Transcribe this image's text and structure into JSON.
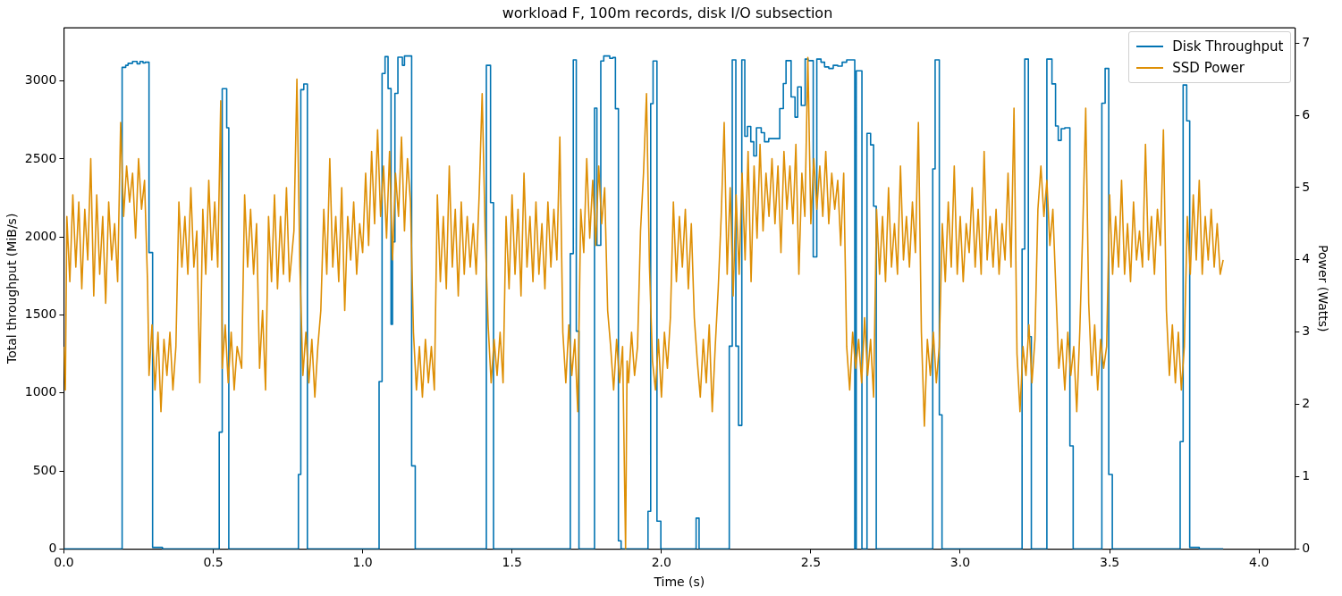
{
  "chart_data": {
    "type": "line",
    "title": "workload F, 100m records, disk I/O subsection",
    "xlabel": "Time (s)",
    "ylabel": "Total throughput (MiB/s)",
    "y2label": "Power (Watts)",
    "xlim": [
      0,
      4.12
    ],
    "xticks": [
      {
        "value": 0,
        "label": "0.0"
      },
      {
        "value": 0.5,
        "label": "0.5"
      },
      {
        "value": 1,
        "label": "1.0"
      },
      {
        "value": 1.5,
        "label": "1.5"
      },
      {
        "value": 2,
        "label": "2.0"
      },
      {
        "value": 2.5,
        "label": "2.5"
      },
      {
        "value": 3,
        "label": "3.0"
      },
      {
        "value": 3.5,
        "label": "3.5"
      },
      {
        "value": 4,
        "label": "4.0"
      }
    ],
    "ylim": [
      0,
      3340
    ],
    "yticks": [
      0,
      500,
      1000,
      1500,
      2000,
      2500,
      3000
    ],
    "y2lim": [
      0,
      7.21
    ],
    "y2ticks": [
      0,
      1,
      2,
      3,
      4,
      5,
      6,
      7
    ],
    "legend": "top right",
    "grid": false,
    "marker": "none",
    "series": [
      {
        "name": "Disk Throughput",
        "type": "step",
        "color": "#0173b2",
        "x": [
          0,
          0.195,
          0.207,
          0.215,
          0.23,
          0.245,
          0.255,
          0.265,
          0.272,
          0.285,
          0.297,
          0.33,
          0.52,
          0.53,
          0.545,
          0.552,
          0.785,
          0.793,
          0.803,
          0.815,
          1.055,
          1.065,
          1.075,
          1.085,
          1.095,
          1.1,
          1.108,
          1.118,
          1.133,
          1.14,
          1.164,
          1.176,
          1.414,
          1.428,
          1.438,
          1.695,
          1.705,
          1.715,
          1.724,
          1.776,
          1.784,
          1.797,
          1.807,
          1.827,
          1.837,
          1.846,
          1.856,
          1.865,
          1.955,
          1.964,
          1.972,
          1.985,
          1.998,
          2.116,
          2.126,
          2.227,
          2.237,
          2.249,
          2.258,
          2.269,
          2.279,
          2.288,
          2.299,
          2.309,
          2.318,
          2.334,
          2.345,
          2.359,
          2.396,
          2.408,
          2.417,
          2.434,
          2.447,
          2.456,
          2.468,
          2.481,
          2.491,
          2.508,
          2.52,
          2.534,
          2.546,
          2.56,
          2.575,
          2.59,
          2.605,
          2.62,
          2.647,
          2.652,
          2.671,
          2.688,
          2.7,
          2.71,
          2.719,
          2.908,
          2.916,
          2.93,
          2.939,
          3.207,
          3.216,
          3.228,
          3.238,
          3.29,
          3.307,
          3.319,
          3.328,
          3.338,
          3.35,
          3.367,
          3.378,
          3.474,
          3.485,
          3.497,
          3.509,
          3.736,
          3.746,
          3.758,
          3.768,
          3.8,
          3.88
        ],
        "values": [
          0,
          3087,
          3100,
          3113,
          3125,
          3110,
          3125,
          3115,
          3120,
          1900,
          10,
          0,
          749,
          2950,
          2700,
          0,
          478,
          2944,
          2980,
          0,
          1073,
          3048,
          3156,
          2951,
          1440,
          1968,
          2920,
          3152,
          3100,
          3160,
          533,
          0,
          3100,
          2220,
          0,
          1893,
          3135,
          1396,
          0,
          2826,
          1947,
          3128,
          3160,
          3145,
          3150,
          2822,
          52,
          0,
          241,
          2854,
          3128,
          178,
          0,
          198,
          0,
          1300,
          3135,
          1300,
          792,
          3135,
          2645,
          2708,
          2610,
          2519,
          2700,
          2668,
          2610,
          2630,
          2823,
          2983,
          3130,
          2897,
          2768,
          2962,
          2843,
          3140,
          3130,
          1872,
          3140,
          3120,
          3090,
          3080,
          3100,
          3095,
          3120,
          3135,
          0,
          3065,
          0,
          2664,
          2590,
          2197,
          0,
          2436,
          3135,
          860,
          0,
          1922,
          3140,
          1361,
          0,
          3140,
          2981,
          2711,
          2619,
          2694,
          2700,
          661,
          0,
          2857,
          3080,
          478,
          0,
          688,
          2974,
          2744,
          10,
          0,
          0
        ]
      },
      {
        "name": "SSD Power",
        "type": "line",
        "color": "#de8f05",
        "axis": "y2",
        "x": [
          0,
          0.005,
          0.01,
          0.02,
          0.03,
          0.04,
          0.05,
          0.06,
          0.07,
          0.08,
          0.09,
          0.1,
          0.11,
          0.12,
          0.13,
          0.14,
          0.15,
          0.16,
          0.17,
          0.18,
          0.19,
          0.2,
          0.21,
          0.22,
          0.23,
          0.24,
          0.25,
          0.26,
          0.27,
          0.28,
          0.285,
          0.295,
          0.305,
          0.315,
          0.325,
          0.335,
          0.345,
          0.355,
          0.365,
          0.375,
          0.385,
          0.395,
          0.405,
          0.415,
          0.425,
          0.435,
          0.445,
          0.455,
          0.465,
          0.475,
          0.485,
          0.495,
          0.505,
          0.515,
          0.525,
          0.53,
          0.54,
          0.55,
          0.56,
          0.57,
          0.58,
          0.595,
          0.605,
          0.615,
          0.625,
          0.635,
          0.645,
          0.655,
          0.665,
          0.675,
          0.685,
          0.695,
          0.705,
          0.715,
          0.725,
          0.735,
          0.745,
          0.755,
          0.77,
          0.78,
          0.79,
          0.8,
          0.81,
          0.82,
          0.83,
          0.84,
          0.85,
          0.86,
          0.87,
          0.88,
          0.89,
          0.9,
          0.91,
          0.92,
          0.93,
          0.94,
          0.95,
          0.96,
          0.97,
          0.98,
          0.99,
          1,
          1.01,
          1.02,
          1.03,
          1.04,
          1.05,
          1.06,
          1.07,
          1.08,
          1.09,
          1.1,
          1.11,
          1.12,
          1.13,
          1.14,
          1.15,
          1.16,
          1.17,
          1.18,
          1.19,
          1.2,
          1.21,
          1.22,
          1.23,
          1.24,
          1.25,
          1.26,
          1.27,
          1.28,
          1.29,
          1.3,
          1.31,
          1.32,
          1.33,
          1.34,
          1.35,
          1.36,
          1.37,
          1.38,
          1.39,
          1.4,
          1.41,
          1.42,
          1.43,
          1.44,
          1.45,
          1.46,
          1.47,
          1.48,
          1.49,
          1.5,
          1.51,
          1.52,
          1.53,
          1.54,
          1.55,
          1.56,
          1.57,
          1.58,
          1.59,
          1.6,
          1.61,
          1.62,
          1.63,
          1.64,
          1.65,
          1.66,
          1.67,
          1.68,
          1.69,
          1.7,
          1.71,
          1.72,
          1.73,
          1.74,
          1.75,
          1.76,
          1.77,
          1.78,
          1.79,
          1.8,
          1.81,
          1.82,
          1.83,
          1.84,
          1.85,
          1.86,
          1.87,
          1.88,
          1.885,
          1.89,
          1.9,
          1.91,
          1.92,
          1.93,
          1.94,
          1.95,
          1.96,
          1.97,
          1.98,
          1.99,
          2,
          2.01,
          2.02,
          2.03,
          2.04,
          2.05,
          2.06,
          2.07,
          2.08,
          2.09,
          2.1,
          2.11,
          2.12,
          2.13,
          2.14,
          2.15,
          2.16,
          2.17,
          2.18,
          2.19,
          2.2,
          2.21,
          2.22,
          2.23,
          2.24,
          2.25,
          2.26,
          2.27,
          2.28,
          2.29,
          2.3,
          2.31,
          2.32,
          2.33,
          2.34,
          2.35,
          2.36,
          2.37,
          2.38,
          2.39,
          2.4,
          2.41,
          2.42,
          2.43,
          2.44,
          2.45,
          2.46,
          2.47,
          2.48,
          2.49,
          2.5,
          2.51,
          2.52,
          2.53,
          2.54,
          2.55,
          2.56,
          2.57,
          2.58,
          2.59,
          2.6,
          2.61,
          2.62,
          2.63,
          2.64,
          2.65,
          2.66,
          2.67,
          2.68,
          2.69,
          2.7,
          2.71,
          2.72,
          2.73,
          2.74,
          2.75,
          2.76,
          2.77,
          2.78,
          2.79,
          2.8,
          2.81,
          2.82,
          2.83,
          2.84,
          2.85,
          2.86,
          2.87,
          2.88,
          2.89,
          2.9,
          2.91,
          2.92,
          2.93,
          2.94,
          2.95,
          2.96,
          2.97,
          2.98,
          2.99,
          3,
          3.01,
          3.02,
          3.03,
          3.04,
          3.05,
          3.06,
          3.07,
          3.08,
          3.09,
          3.1,
          3.11,
          3.12,
          3.13,
          3.14,
          3.15,
          3.16,
          3.17,
          3.18,
          3.19,
          3.2,
          3.21,
          3.22,
          3.23,
          3.24,
          3.25,
          3.26,
          3.27,
          3.28,
          3.29,
          3.3,
          3.31,
          3.32,
          3.33,
          3.34,
          3.35,
          3.36,
          3.37,
          3.38,
          3.39,
          3.4,
          3.41,
          3.42,
          3.43,
          3.44,
          3.45,
          3.46,
          3.47,
          3.48,
          3.49,
          3.5,
          3.51,
          3.52,
          3.53,
          3.54,
          3.55,
          3.56,
          3.57,
          3.58,
          3.59,
          3.6,
          3.61,
          3.62,
          3.63,
          3.64,
          3.65,
          3.66,
          3.67,
          3.68,
          3.69,
          3.7,
          3.71,
          3.72,
          3.73,
          3.74,
          3.75,
          3.76,
          3.77,
          3.78,
          3.79,
          3.8,
          3.81,
          3.82,
          3.83,
          3.84,
          3.85,
          3.86,
          3.87,
          3.88
        ],
        "values": [
          2.8,
          2.2,
          4.6,
          3.7,
          4.9,
          3.9,
          4.8,
          3.6,
          4.7,
          4,
          5.4,
          3.5,
          4.9,
          3.8,
          4.6,
          3.4,
          4.8,
          4,
          4.5,
          3.7,
          5.9,
          4.6,
          5.3,
          4.8,
          5.2,
          4.3,
          5.4,
          4.7,
          5.1,
          3.7,
          2.4,
          3.1,
          2.2,
          3,
          1.9,
          2.9,
          2.4,
          3,
          2.2,
          2.8,
          4.8,
          3.9,
          4.6,
          3.8,
          5,
          3.9,
          4.4,
          2.3,
          4.7,
          3.8,
          5.1,
          4,
          4.8,
          3.9,
          6.2,
          2.5,
          3.1,
          2.3,
          3,
          2.2,
          2.8,
          2.5,
          4.9,
          3.9,
          4.7,
          3.8,
          4.5,
          2.5,
          3.3,
          2.2,
          4.6,
          3.7,
          4.9,
          3.6,
          4.6,
          3.8,
          5,
          3.7,
          4.4,
          6.5,
          3.9,
          2.4,
          3,
          2.3,
          2.9,
          2.1,
          2.8,
          3.3,
          4.7,
          3.8,
          5.4,
          3.9,
          4.6,
          3.7,
          5,
          3.3,
          4.6,
          4,
          4.8,
          3.8,
          4.5,
          4.1,
          5.2,
          4.2,
          5.5,
          4.5,
          5.8,
          4.6,
          5.3,
          4.3,
          5.5,
          4,
          5.2,
          4.6,
          5.7,
          4.4,
          5.4,
          4.8,
          3,
          2.2,
          2.8,
          2.1,
          2.9,
          2.3,
          2.8,
          2.2,
          4.9,
          3.7,
          4.6,
          3.6,
          5.3,
          3.9,
          4.7,
          3.5,
          4.8,
          3.8,
          4.6,
          3.9,
          4.5,
          3.8,
          4.9,
          6.3,
          4.4,
          3.1,
          2.3,
          2.9,
          2.4,
          3,
          2.3,
          4.6,
          3.6,
          4.9,
          3.8,
          4.7,
          3.5,
          5.2,
          3.9,
          4.6,
          3.7,
          4.8,
          3.8,
          4.5,
          3.6,
          4.8,
          3.9,
          4.7,
          4,
          5.7,
          3,
          2.3,
          3.1,
          2.4,
          2.9,
          1.9,
          4.7,
          4.1,
          5.4,
          4.3,
          5.1,
          4.2,
          5.3,
          4.5,
          5,
          3.3,
          2.8,
          2.2,
          2.9,
          2.3,
          2.8,
          0,
          2.6,
          2.3,
          3,
          2.4,
          2.8,
          4.4,
          5.2,
          6.3,
          3.9,
          2.6,
          2.2,
          2.9,
          2.1,
          3,
          2.5,
          3.2,
          4.8,
          3.7,
          4.6,
          3.9,
          4.7,
          3.6,
          4.5,
          3.2,
          2.6,
          2.1,
          2.9,
          2.3,
          3.1,
          1.9,
          2.8,
          3.6,
          4.6,
          5.9,
          3.8,
          5,
          3.5,
          4.9,
          3.8,
          5.2,
          4,
          5.5,
          3.7,
          5.3,
          4.3,
          5.6,
          4.4,
          5.2,
          4.6,
          5.4,
          4.5,
          5.3,
          4.1,
          5.5,
          4.7,
          5.3,
          4.5,
          5.6,
          3.8,
          5.2,
          4.6,
          6.8,
          4.5,
          5.4,
          4.7,
          5.3,
          4.6,
          5.5,
          4.5,
          5.2,
          4.7,
          5.1,
          4.2,
          5.2,
          2.8,
          2.2,
          3,
          2.5,
          2.9,
          2.3,
          3.2,
          2.4,
          2.9,
          2.1,
          4.7,
          3.8,
          4.6,
          3.7,
          5,
          3.9,
          4.5,
          3.8,
          5.3,
          4,
          4.6,
          3.9,
          4.8,
          4.1,
          5.9,
          3,
          1.7,
          2.9,
          2.4,
          3,
          2.3,
          2.8,
          4.5,
          3.7,
          4.8,
          3.9,
          5.3,
          3.8,
          4.6,
          3.7,
          4.5,
          4.1,
          5,
          3.9,
          4.7,
          3.8,
          5.5,
          4,
          4.6,
          3.9,
          4.7,
          3.8,
          4.5,
          4,
          5.2,
          3.9,
          6.1,
          2.7,
          1.9,
          2.8,
          2.4,
          3.1,
          2.3,
          2.9,
          4.7,
          5.3,
          4.6,
          5.1,
          4.2,
          4.7,
          3.6,
          2.5,
          2.9,
          2.2,
          3,
          2.4,
          2.8,
          1.9,
          3,
          4.4,
          6.1,
          3.4,
          2.4,
          3.1,
          2.2,
          2.9,
          2.5,
          2.8,
          4.9,
          3.8,
          4.6,
          3.9,
          5.1,
          3.8,
          4.5,
          3.7,
          4.8,
          4,
          4.4,
          3.9,
          5.6,
          4,
          4.6,
          3.8,
          4.7,
          4.2,
          5.8,
          3.3,
          2.4,
          3.1,
          2.3,
          3,
          2.2,
          2.8,
          4.6,
          3.8,
          4.9,
          4,
          5.1,
          3.8,
          4.6,
          4,
          4.7,
          3.9,
          4.5,
          3.8,
          4
        ]
      }
    ]
  }
}
